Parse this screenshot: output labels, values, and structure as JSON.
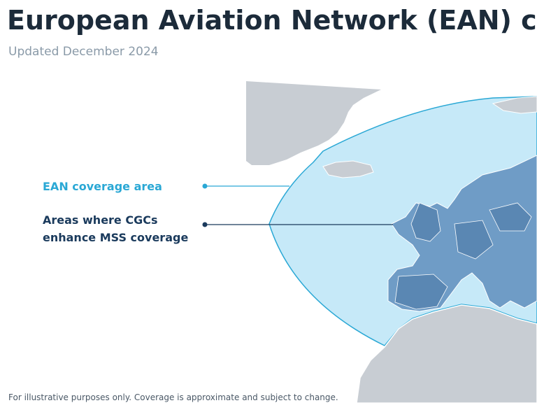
{
  "header": {
    "title": "European Aviation Network (EAN) coverage",
    "subtitle": "Updated December 2024"
  },
  "legend": {
    "items": [
      {
        "label_lines": [
          "EAN coverage area"
        ]
      },
      {
        "label_lines": [
          "Areas where CGCs",
          "enhance MSS coverage"
        ]
      }
    ]
  },
  "footnote": "For illustrative purposes only. Coverage is approximate and subject to change."
}
